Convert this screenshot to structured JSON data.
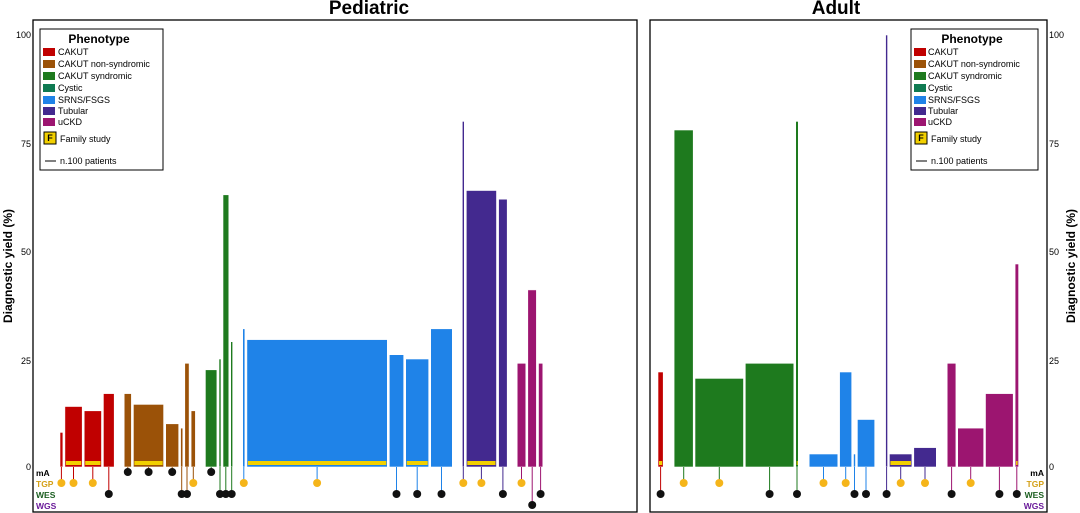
{
  "chart_data": {
    "type": "bar",
    "ylabel": "Diagnostic yield (%)",
    "ylim": [
      0,
      100
    ],
    "yticks": [
      "0",
      "25",
      "50",
      "75",
      "100"
    ],
    "legend": {
      "title": "Phenotype",
      "placement": "top-left of each panel",
      "entries": [
        {
          "label": "CAKUT",
          "color": "#c00000"
        },
        {
          "label": "CAKUT non-syndromic",
          "color": "#9b5208"
        },
        {
          "label": "CAKUT syndromic",
          "color": "#1e7a1e"
        },
        {
          "label": "Cystic",
          "color": "#0f7a52"
        },
        {
          "label": "SRNS/FSGS",
          "color": "#1f83e8"
        },
        {
          "label": "Tubular",
          "color": "#43298f"
        },
        {
          "label": "uCKD",
          "color": "#9c1570"
        }
      ],
      "family_label": "Family study",
      "family_symbol": "F",
      "scale_label": "n.100 patients"
    },
    "test_types": [
      {
        "label": "mA",
        "color": "#000000"
      },
      {
        "label": "TGP",
        "color": "#d4a017"
      },
      {
        "label": "WES",
        "color": "#1b5e20"
      },
      {
        "label": "WGS",
        "color": "#6a1b9a"
      }
    ],
    "panels": [
      {
        "title": "Pediatric",
        "bars": [
          {
            "phenotype": "CAKUT",
            "value": 8,
            "patients": 4,
            "test": "TGP"
          },
          {
            "phenotype": "CAKUT",
            "value": 14,
            "patients": 24,
            "test": "TGP",
            "family": true
          },
          {
            "phenotype": "CAKUT",
            "value": 13,
            "patients": 24,
            "test": "TGP",
            "family": true
          },
          {
            "phenotype": "CAKUT",
            "value": 17,
            "patients": 15,
            "test": "WES"
          },
          {
            "phenotype": "CAKUT non-syndromic",
            "value": 17,
            "patients": 10,
            "test": "mA"
          },
          {
            "phenotype": "CAKUT non-syndromic",
            "value": 14.5,
            "patients": 42,
            "test": "mA",
            "family": true
          },
          {
            "phenotype": "CAKUT non-syndromic",
            "value": 10,
            "patients": 18,
            "test": "mA"
          },
          {
            "phenotype": "CAKUT non-syndromic",
            "value": 9,
            "patients": 3,
            "test": "WES"
          },
          {
            "phenotype": "CAKUT non-syndromic",
            "value": 24,
            "patients": 6,
            "test": "WES"
          },
          {
            "phenotype": "CAKUT non-syndromic",
            "value": 13,
            "patients": 6,
            "test": "TGP"
          },
          {
            "phenotype": "CAKUT syndromic",
            "value": 22.5,
            "patients": 16,
            "test": "mA"
          },
          {
            "phenotype": "CAKUT syndromic",
            "value": 25,
            "patients": 2,
            "test": "WES"
          },
          {
            "phenotype": "CAKUT syndromic",
            "value": 63,
            "patients": 8,
            "test": "WES"
          },
          {
            "phenotype": "CAKUT syndromic",
            "value": 29,
            "patients": 2,
            "test": "WES"
          },
          {
            "phenotype": "SRNS/FSGS",
            "value": 32,
            "patients": 3,
            "test": "TGP"
          },
          {
            "phenotype": "SRNS/FSGS",
            "value": 29.5,
            "patients": 195,
            "test": "TGP",
            "family": true
          },
          {
            "phenotype": "SRNS/FSGS",
            "value": 26,
            "patients": 20,
            "test": "WES"
          },
          {
            "phenotype": "SRNS/FSGS",
            "value": 25,
            "patients": 32,
            "test": "WES",
            "family": true
          },
          {
            "phenotype": "SRNS/FSGS",
            "value": 32,
            "patients": 30,
            "test": "WES"
          },
          {
            "phenotype": "Tubular",
            "value": 80,
            "patients": 2,
            "test": "TGP"
          },
          {
            "phenotype": "Tubular",
            "value": 64,
            "patients": 42,
            "test": "TGP",
            "family": true
          },
          {
            "phenotype": "Tubular",
            "value": 62,
            "patients": 12,
            "test": "WES"
          },
          {
            "phenotype": "uCKD",
            "value": 24,
            "patients": 12,
            "test": "TGP"
          },
          {
            "phenotype": "uCKD",
            "value": 41,
            "patients": 12,
            "test": "WGS"
          },
          {
            "phenotype": "uCKD",
            "value": 24,
            "patients": 6,
            "test": "WES"
          }
        ]
      },
      {
        "title": "Adult",
        "bars": [
          {
            "phenotype": "CAKUT",
            "value": 22,
            "patients": 6,
            "test": "WES",
            "family": true
          },
          {
            "phenotype": "CAKUT syndromic",
            "value": 78,
            "patients": 22,
            "test": "TGP"
          },
          {
            "phenotype": "CAKUT syndromic",
            "value": 20.5,
            "patients": 56,
            "test": "TGP"
          },
          {
            "phenotype": "CAKUT syndromic",
            "value": 24,
            "patients": 56,
            "test": "WES"
          },
          {
            "phenotype": "CAKUT syndromic",
            "value": 80,
            "patients": 3,
            "test": "WES",
            "family": true
          },
          {
            "phenotype": "SRNS/FSGS",
            "value": 3,
            "patients": 33,
            "test": "TGP"
          },
          {
            "phenotype": "SRNS/FSGS",
            "value": 22,
            "patients": 14,
            "test": "TGP"
          },
          {
            "phenotype": "SRNS/FSGS",
            "value": 3,
            "patients": 2,
            "test": "WES"
          },
          {
            "phenotype": "SRNS/FSGS",
            "value": 11,
            "patients": 20,
            "test": "WES"
          },
          {
            "phenotype": "Tubular",
            "value": 100,
            "patients": 2,
            "test": "WES"
          },
          {
            "phenotype": "Tubular",
            "value": 3,
            "patients": 26,
            "test": "TGP",
            "family": true
          },
          {
            "phenotype": "Tubular",
            "value": 4.5,
            "patients": 26,
            "test": "TGP"
          },
          {
            "phenotype": "uCKD",
            "value": 24,
            "patients": 10,
            "test": "WES"
          },
          {
            "phenotype": "uCKD",
            "value": 9,
            "patients": 30,
            "test": "TGP"
          },
          {
            "phenotype": "uCKD",
            "value": 17,
            "patients": 32,
            "test": "WES"
          },
          {
            "phenotype": "uCKD",
            "value": 47,
            "patients": 4,
            "test": "WES",
            "family": true
          }
        ]
      }
    ]
  }
}
